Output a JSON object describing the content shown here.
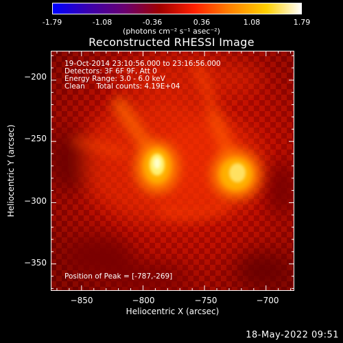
{
  "colorbar": {
    "tick_labels": [
      "-1.79",
      "-1.08",
      "-0.36",
      "0.36",
      "1.08",
      "1.79"
    ],
    "unit_label": "(photons cm⁻² s⁻¹ asec⁻²)",
    "colors": [
      "#0000ff",
      "#3a00b0",
      "#6a0070",
      "#a00000",
      "#ff2000",
      "#ff8000",
      "#ffd000",
      "#ffffff"
    ]
  },
  "title": "Reconstructed RHESSI Image",
  "info": {
    "line1": "19-Oct-2014 23:10:56.000 to 23:16:56.000",
    "line2": "Detectors: 3F 6F 9F, Att 0",
    "line3": "Energy Range: 3.0 - 6.0 keV",
    "line4": "Clean     Total counts: 4.19E+04",
    "peak": "Position of Peak = [-787,-269]"
  },
  "axes": {
    "x_label": "Heliocentric X (arcsec)",
    "y_label": "Heliocentric Y (arcsec)",
    "x_ticks": [
      "−850",
      "−800",
      "−750",
      "−700"
    ],
    "y_ticks": [
      "−200",
      "−250",
      "−300",
      "−350"
    ],
    "x_range": [
      -875,
      -677
    ],
    "y_range": [
      -372,
      -176
    ]
  },
  "footer": {
    "timestamp": "18-May-2022 09:51"
  }
}
